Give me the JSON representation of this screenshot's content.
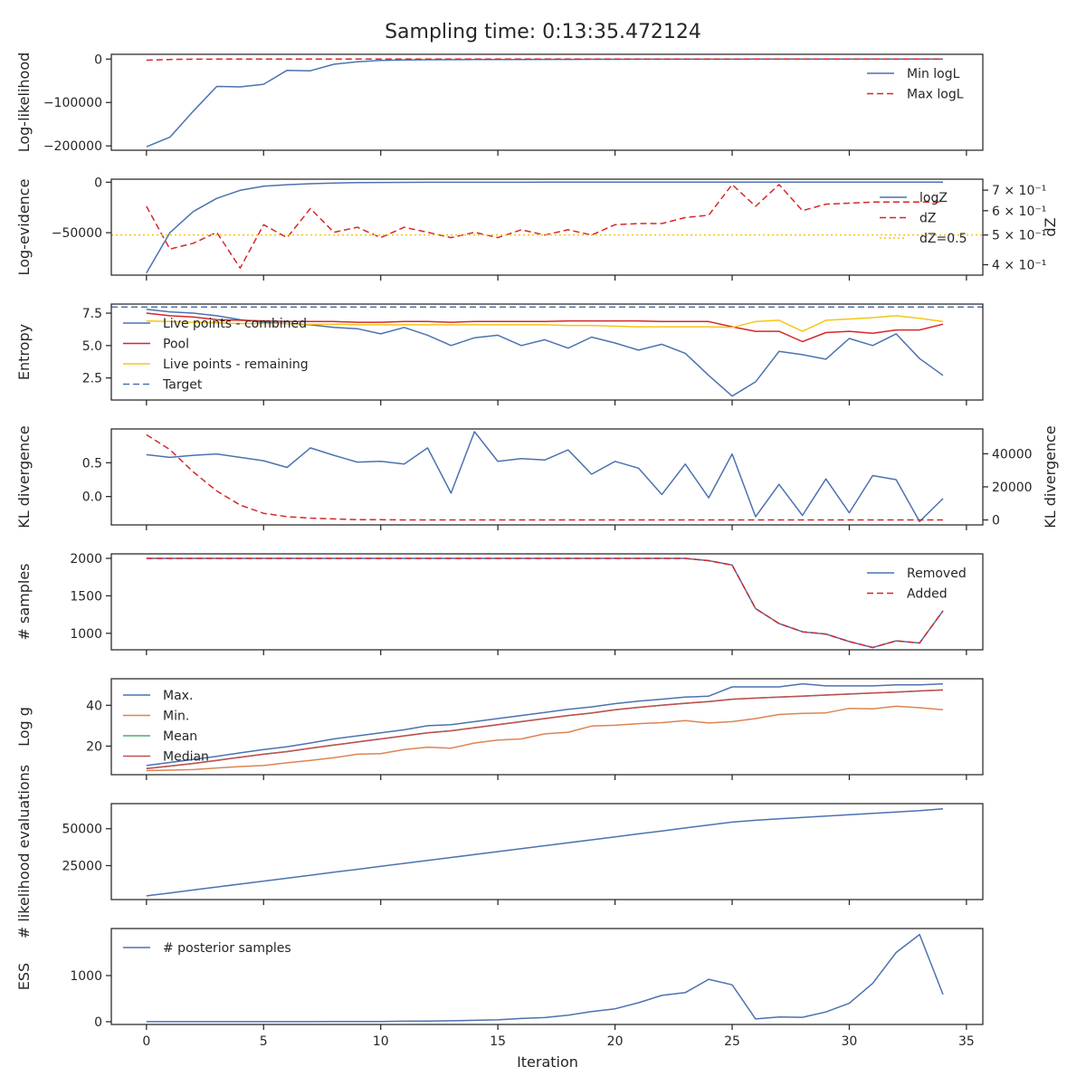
{
  "title": "Sampling time: 0:13:35.472124",
  "colors": {
    "blue": "#4c72b0",
    "red": "#d62728",
    "orange": "#dd8452",
    "green": "#55a868",
    "redmed": "#c44e52",
    "yellow": "#f5c518"
  },
  "x_axis": {
    "label": "Iteration",
    "ticks": [
      0,
      5,
      10,
      15,
      20,
      25,
      30,
      35
    ],
    "tick_labels": [
      "0",
      "5",
      "10",
      "15",
      "20",
      "25",
      "30",
      "35"
    ],
    "range": [
      -1.5,
      35.7
    ]
  },
  "chart_data": [
    {
      "type": "line",
      "ylabel": "Log-likelihood",
      "ylim": [
        -210000,
        11000
      ],
      "yticks": [
        0,
        -100000,
        -200000
      ],
      "ytick_labels": [
        "0",
        "−100000",
        "−200000"
      ],
      "legend_position": "upper right",
      "x": [
        0,
        1,
        2,
        3,
        4,
        5,
        6,
        7,
        8,
        9,
        10,
        11,
        12,
        13,
        14,
        15,
        16,
        17,
        18,
        19,
        20,
        21,
        22,
        23,
        24,
        25,
        26,
        27,
        28,
        29,
        30,
        31,
        32,
        33,
        34
      ],
      "series": [
        {
          "name": "Min logL",
          "color": "blue",
          "dash": "solid",
          "values": [
            -202000,
            -180000,
            -120000,
            -63000,
            -64000,
            -58000,
            -26000,
            -27000,
            -12000,
            -6000,
            -3000,
            -2000,
            -1500,
            -1200,
            -1000,
            -900,
            -800,
            -700,
            -600,
            -500,
            -400,
            -350,
            -300,
            -250,
            -200,
            -180,
            -150,
            -120,
            -100,
            -80,
            -60,
            -50,
            -40,
            -30,
            -20
          ]
        },
        {
          "name": "Max logL",
          "color": "red",
          "dash": "dashed",
          "values": [
            -2500,
            -800,
            -300,
            -100,
            -50,
            0,
            0,
            0,
            0,
            0,
            0,
            0,
            0,
            0,
            0,
            0,
            0,
            0,
            0,
            0,
            0,
            0,
            0,
            0,
            0,
            0,
            0,
            0,
            0,
            0,
            0,
            0,
            0,
            0,
            0
          ]
        }
      ]
    },
    {
      "type": "line",
      "ylabel": "Log-evidence",
      "ylim": [
        -92000,
        3000
      ],
      "yticks": [
        0,
        -50000
      ],
      "ytick_labels": [
        "0",
        "−50000"
      ],
      "y2label": "dZ",
      "y2lim": [
        0.37,
        0.76
      ],
      "y2ticks": [
        0.4,
        0.5,
        0.6,
        0.7
      ],
      "y2tick_labels": [
        "4 × 10⁻¹",
        "5 × 10⁻¹",
        "6 × 10⁻¹",
        "7 × 10⁻¹"
      ],
      "y2scale": "log",
      "legend_position": "upper right",
      "x": [
        0,
        1,
        2,
        3,
        4,
        5,
        6,
        7,
        8,
        9,
        10,
        11,
        12,
        13,
        14,
        15,
        16,
        17,
        18,
        19,
        20,
        21,
        22,
        23,
        24,
        25,
        26,
        27,
        28,
        29,
        30,
        31,
        32,
        33,
        34
      ],
      "series": [
        {
          "name": "logZ",
          "color": "blue",
          "dash": "solid",
          "axis": "left",
          "values": [
            -90000,
            -50000,
            -29000,
            -16000,
            -8000,
            -4000,
            -2500,
            -1500,
            -800,
            -400,
            -200,
            -100,
            -60,
            -40,
            -20,
            -10,
            -5,
            0,
            0,
            0,
            0,
            0,
            0,
            0,
            0,
            0,
            0,
            0,
            0,
            0,
            0,
            0,
            0,
            0,
            0
          ]
        },
        {
          "name": "dZ",
          "color": "red",
          "dash": "dashed",
          "axis": "right",
          "values": [
            0.62,
            0.45,
            0.47,
            0.51,
            0.39,
            0.54,
            0.49,
            0.61,
            0.51,
            0.53,
            0.49,
            0.53,
            0.51,
            0.49,
            0.51,
            0.49,
            0.52,
            0.5,
            0.52,
            0.5,
            0.54,
            0.545,
            0.545,
            0.57,
            0.58,
            0.73,
            0.62,
            0.73,
            0.6,
            0.63,
            0.635,
            0.64,
            0.64,
            0.64,
            0.64
          ]
        },
        {
          "name": "dZ=0.5",
          "color": "yellow",
          "dash": "dotted",
          "axis": "right",
          "constant": 0.5
        }
      ]
    },
    {
      "type": "line",
      "ylabel": "Entropy",
      "ylim": [
        0.8,
        8.2
      ],
      "yticks": [
        2.5,
        5.0,
        7.5
      ],
      "ytick_labels": [
        "2.5",
        "5.0",
        "7.5"
      ],
      "legend_position": "upper left",
      "x": [
        0,
        1,
        2,
        3,
        4,
        5,
        6,
        7,
        8,
        9,
        10,
        11,
        12,
        13,
        14,
        15,
        16,
        17,
        18,
        19,
        20,
        21,
        22,
        23,
        24,
        25,
        26,
        27,
        28,
        29,
        30,
        31,
        32,
        33,
        34
      ],
      "series": [
        {
          "name": "Live points - combined",
          "color": "blue",
          "dash": "solid",
          "values": [
            7.8,
            7.6,
            7.5,
            7.3,
            7.0,
            6.8,
            6.7,
            6.6,
            6.4,
            6.3,
            5.9,
            6.4,
            5.8,
            5.0,
            5.6,
            5.8,
            5.0,
            5.45,
            4.8,
            5.65,
            5.2,
            4.65,
            5.1,
            4.4,
            2.7,
            1.1,
            2.2,
            4.55,
            4.3,
            3.95,
            5.55,
            5.0,
            5.9,
            4.0,
            2.7
          ]
        },
        {
          "name": "Pool",
          "color": "red",
          "dash": "solid",
          "values": [
            7.5,
            7.3,
            7.2,
            7.0,
            6.95,
            6.9,
            6.85,
            6.85,
            6.85,
            6.8,
            6.8,
            6.85,
            6.85,
            6.8,
            6.85,
            6.85,
            6.85,
            6.85,
            6.9,
            6.9,
            6.9,
            6.9,
            6.85,
            6.85,
            6.85,
            6.45,
            6.1,
            6.1,
            5.3,
            6.0,
            6.1,
            5.95,
            6.2,
            6.2,
            6.65
          ]
        },
        {
          "name": "Live points - remaining",
          "color": "yellow",
          "dash": "solid",
          "values": [
            6.9,
            6.85,
            6.8,
            6.75,
            6.7,
            6.7,
            6.7,
            6.65,
            6.65,
            6.6,
            6.6,
            6.6,
            6.6,
            6.6,
            6.6,
            6.6,
            6.6,
            6.6,
            6.55,
            6.55,
            6.5,
            6.45,
            6.45,
            6.45,
            6.45,
            6.4,
            6.85,
            6.95,
            6.1,
            6.95,
            7.05,
            7.15,
            7.3,
            7.1,
            6.85
          ]
        },
        {
          "name": "Target",
          "color": "blue",
          "dash": "dashed",
          "constant": 7.97
        }
      ]
    },
    {
      "type": "line",
      "ylabel": "KL divergence",
      "ylim": [
        -0.42,
        1.0
      ],
      "yticks": [
        0.0,
        0.5
      ],
      "ytick_labels": [
        "0.0",
        "0.5"
      ],
      "y2label": "KL divergence",
      "y2lim": [
        -3000,
        55000
      ],
      "y2ticks": [
        0,
        20000,
        40000
      ],
      "y2tick_labels": [
        "0",
        "20000",
        "40000"
      ],
      "x": [
        0,
        1,
        2,
        3,
        4,
        5,
        6,
        7,
        8,
        9,
        10,
        11,
        12,
        13,
        14,
        15,
        16,
        17,
        18,
        19,
        20,
        21,
        22,
        23,
        24,
        25,
        26,
        27,
        28,
        29,
        30,
        31,
        32,
        33,
        34
      ],
      "series": [
        {
          "name": "",
          "color": "blue",
          "dash": "solid",
          "axis": "left",
          "values": [
            0.62,
            0.58,
            0.61,
            0.63,
            0.58,
            0.53,
            0.43,
            0.72,
            0.61,
            0.51,
            0.52,
            0.48,
            0.72,
            0.05,
            0.96,
            0.52,
            0.56,
            0.54,
            0.69,
            0.33,
            0.52,
            0.42,
            0.03,
            0.48,
            -0.02,
            0.63,
            -0.3,
            0.18,
            -0.28,
            0.26,
            -0.24,
            0.31,
            0.25,
            -0.37,
            -0.03
          ]
        },
        {
          "name": "",
          "color": "red",
          "dash": "dashed",
          "axis": "right",
          "values": [
            51500,
            42500,
            29000,
            17500,
            9000,
            4000,
            2000,
            1100,
            600,
            200,
            100,
            0,
            0,
            0,
            0,
            0,
            0,
            0,
            0,
            0,
            0,
            0,
            0,
            0,
            0,
            0,
            0,
            0,
            0,
            0,
            0,
            0,
            0,
            0,
            0
          ]
        }
      ]
    },
    {
      "type": "line",
      "ylabel": "# samples",
      "ylim": [
        780,
        2060
      ],
      "yticks": [
        1000,
        1500,
        2000
      ],
      "ytick_labels": [
        "1000",
        "1500",
        "2000"
      ],
      "legend_position": "upper right",
      "x": [
        0,
        1,
        2,
        3,
        4,
        5,
        6,
        7,
        8,
        9,
        10,
        11,
        12,
        13,
        14,
        15,
        16,
        17,
        18,
        19,
        20,
        21,
        22,
        23,
        24,
        25,
        26,
        27,
        28,
        29,
        30,
        31,
        32,
        33,
        34
      ],
      "series": [
        {
          "name": "Removed",
          "color": "blue",
          "dash": "solid",
          "values": [
            2000,
            2000,
            2000,
            2000,
            2000,
            2000,
            2000,
            2000,
            2000,
            2000,
            2000,
            2000,
            2000,
            2000,
            2000,
            2000,
            2000,
            2000,
            2000,
            2000,
            2000,
            2000,
            2000,
            2000,
            1970,
            1910,
            1330,
            1130,
            1020,
            990,
            890,
            810,
            900,
            870,
            1300
          ]
        },
        {
          "name": "Added",
          "color": "red",
          "dash": "dashed",
          "values": [
            2000,
            2000,
            2000,
            2000,
            2000,
            2000,
            2000,
            2000,
            2000,
            2000,
            2000,
            2000,
            2000,
            2000,
            2000,
            2000,
            2000,
            2000,
            2000,
            2000,
            2000,
            2000,
            2000,
            2000,
            1970,
            1910,
            1330,
            1130,
            1020,
            990,
            890,
            810,
            900,
            870,
            1300
          ]
        }
      ]
    },
    {
      "type": "line",
      "ylabel": "Log g",
      "ylim": [
        6,
        53
      ],
      "yticks": [
        20,
        40
      ],
      "ytick_labels": [
        "20",
        "40"
      ],
      "legend_position": "upper left",
      "x": [
        0,
        1,
        2,
        3,
        4,
        5,
        6,
        7,
        8,
        9,
        10,
        11,
        12,
        13,
        14,
        15,
        16,
        17,
        18,
        19,
        20,
        21,
        22,
        23,
        24,
        25,
        26,
        27,
        28,
        29,
        30,
        31,
        32,
        33,
        34
      ],
      "series": [
        {
          "name": "Max.",
          "color": "blue",
          "dash": "solid",
          "values": [
            10.5,
            12,
            13.5,
            15,
            16.7,
            18.3,
            19.7,
            21.5,
            23.5,
            25,
            26.5,
            28,
            30,
            30.5,
            32,
            33.5,
            35,
            36.5,
            38,
            39.2,
            40.8,
            42,
            43,
            44,
            44.5,
            49,
            49,
            49,
            50.5,
            49.5,
            49.5,
            49.5,
            50,
            50,
            50.5
          ]
        },
        {
          "name": "Min.",
          "color": "orange",
          "dash": "solid",
          "values": [
            8,
            8.2,
            8.5,
            9.3,
            10,
            10.5,
            11.8,
            13,
            14.3,
            16,
            16.3,
            18.3,
            19.5,
            19,
            21.5,
            23,
            23.5,
            26,
            26.8,
            29.8,
            30.2,
            31,
            31.5,
            32.5,
            31.3,
            32,
            33.5,
            35.5,
            36,
            36.3,
            38.5,
            38.3,
            39.5,
            38.8,
            37.8
          ]
        },
        {
          "name": "Mean",
          "color": "green",
          "dash": "solid",
          "values": [
            9,
            10.2,
            11.5,
            13,
            14.5,
            16,
            17.3,
            19,
            20.5,
            22,
            23.5,
            25,
            26.5,
            27.5,
            29,
            30.5,
            32,
            33.5,
            35,
            36.2,
            37.8,
            39,
            40,
            41,
            41.8,
            43,
            43.5,
            44,
            44.5,
            45,
            45.5,
            46,
            46.5,
            47,
            47.5
          ]
        },
        {
          "name": "Median",
          "color": "redmed",
          "dash": "solid",
          "values": [
            9,
            10.2,
            11.5,
            13,
            14.5,
            16,
            17.3,
            19,
            20.5,
            22,
            23.5,
            25,
            26.5,
            27.5,
            29,
            30.5,
            32,
            33.5,
            35,
            36.2,
            37.8,
            39,
            40,
            41,
            41.8,
            43,
            43.5,
            44,
            44.5,
            45,
            45.5,
            46,
            46.5,
            47,
            47.5
          ]
        }
      ]
    },
    {
      "type": "line",
      "ylabel": "# likelihood evaluations",
      "ylim": [
        2000,
        67000
      ],
      "yticks": [
        25000,
        50000
      ],
      "ytick_labels": [
        "25000",
        "50000"
      ],
      "x": [
        0,
        1,
        2,
        3,
        4,
        5,
        6,
        7,
        8,
        9,
        10,
        11,
        12,
        13,
        14,
        15,
        16,
        17,
        18,
        19,
        20,
        21,
        22,
        23,
        24,
        25,
        26,
        27,
        28,
        29,
        30,
        31,
        32,
        33,
        34
      ],
      "series": [
        {
          "name": "",
          "color": "blue",
          "dash": "solid",
          "values": [
            4500,
            6500,
            8500,
            10500,
            12500,
            14500,
            16500,
            18500,
            20500,
            22500,
            24500,
            26500,
            28500,
            30500,
            32500,
            34500,
            36500,
            38500,
            40500,
            42500,
            44500,
            46500,
            48500,
            50500,
            52500,
            54500,
            55700,
            56700,
            57700,
            58600,
            59500,
            60400,
            61300,
            62200,
            63500
          ]
        }
      ]
    },
    {
      "type": "line",
      "ylabel": "ESS",
      "ylim": [
        -60,
        2020
      ],
      "yticks": [
        0,
        1000
      ],
      "ytick_labels": [
        "0",
        "1000"
      ],
      "legend_position": "upper left",
      "x": [
        0,
        1,
        2,
        3,
        4,
        5,
        6,
        7,
        8,
        9,
        10,
        11,
        12,
        13,
        14,
        15,
        16,
        17,
        18,
        19,
        20,
        21,
        22,
        23,
        24,
        25,
        26,
        27,
        28,
        29,
        30,
        31,
        32,
        33,
        34
      ],
      "series": [
        {
          "name": "# posterior samples",
          "color": "blue",
          "dash": "solid",
          "values": [
            0,
            0,
            0,
            0,
            0,
            0,
            0,
            0,
            2,
            3,
            5,
            10,
            15,
            20,
            30,
            40,
            70,
            90,
            140,
            220,
            280,
            410,
            570,
            630,
            920,
            800,
            60,
            100,
            95,
            210,
            400,
            830,
            1500,
            1890,
            590
          ]
        }
      ]
    }
  ]
}
